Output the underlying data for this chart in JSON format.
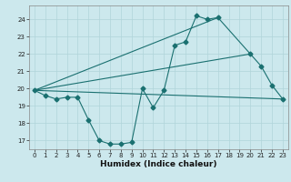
{
  "title": "",
  "xlabel": "Humidex (Indice chaleur)",
  "bg_color": "#cce8ed",
  "grid_color": "#b0d4da",
  "line_color": "#1a7070",
  "x_values": [
    0,
    1,
    2,
    3,
    4,
    5,
    6,
    7,
    8,
    9,
    10,
    11,
    12,
    13,
    14,
    15,
    16,
    17,
    18,
    19,
    20,
    21,
    22,
    23
  ],
  "y_main": [
    19.9,
    19.6,
    19.4,
    19.5,
    19.5,
    18.2,
    17.0,
    16.8,
    16.8,
    16.9,
    20.0,
    18.9,
    19.9,
    22.5,
    22.7,
    24.2,
    24.0,
    24.1,
    null,
    null,
    22.0,
    21.3,
    20.2,
    19.4
  ],
  "trend1_x": [
    0,
    23
  ],
  "trend1_y": [
    19.9,
    19.4
  ],
  "trend2_x": [
    0,
    17
  ],
  "trend2_y": [
    19.9,
    24.1
  ],
  "trend3_x": [
    0,
    20
  ],
  "trend3_y": [
    19.9,
    22.0
  ],
  "ylim": [
    16.5,
    24.8
  ],
  "xlim": [
    -0.5,
    23.5
  ],
  "yticks": [
    17,
    18,
    19,
    20,
    21,
    22,
    23,
    24
  ],
  "xticks": [
    0,
    1,
    2,
    3,
    4,
    5,
    6,
    7,
    8,
    9,
    10,
    11,
    12,
    13,
    14,
    15,
    16,
    17,
    18,
    19,
    20,
    21,
    22,
    23
  ],
  "ylabel_fontsize": 6.0,
  "xlabel_fontsize": 6.5,
  "tick_fontsize": 5.0
}
